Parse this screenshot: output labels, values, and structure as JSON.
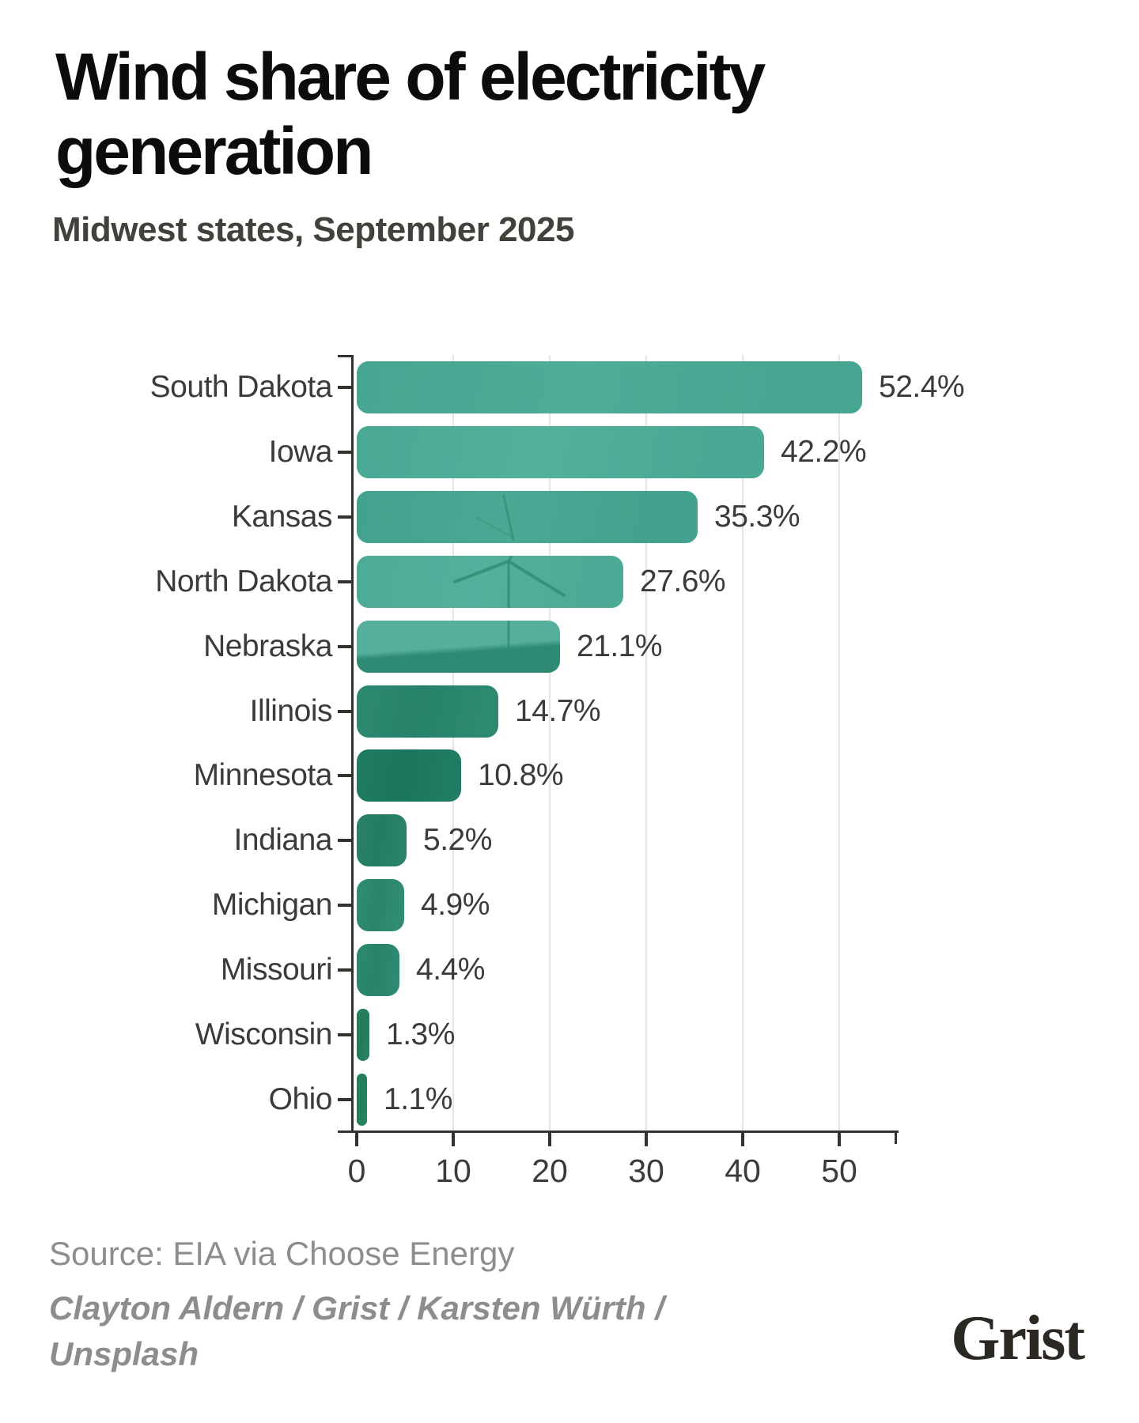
{
  "header": {
    "title": "Wind share of electricity generation",
    "subtitle": "Midwest states, September 2025"
  },
  "chart_data": {
    "type": "bar",
    "orientation": "horizontal",
    "title": "Wind share of electricity generation",
    "subtitle": "Midwest states, September 2025",
    "unit": "%",
    "categories": [
      "South Dakota",
      "Iowa",
      "Kansas",
      "North Dakota",
      "Nebraska",
      "Illinois",
      "Minnesota",
      "Indiana",
      "Michigan",
      "Missouri",
      "Wisconsin",
      "Ohio"
    ],
    "values": [
      52.4,
      42.2,
      35.3,
      27.6,
      21.1,
      14.7,
      10.8,
      5.2,
      4.9,
      4.4,
      1.3,
      1.1
    ],
    "value_labels": [
      "52.4%",
      "42.2%",
      "35.3%",
      "27.6%",
      "21.1%",
      "14.7%",
      "10.8%",
      "5.2%",
      "4.9%",
      "4.4%",
      "1.3%",
      "1.1%"
    ],
    "x_ticks": [
      "0",
      "10",
      "20",
      "30",
      "40",
      "50"
    ],
    "xlim": [
      0,
      56
    ],
    "xlabel": "",
    "ylabel": "",
    "grid": "vertical",
    "legend": "none",
    "bar_texture": "wind-turbine-photo-teal-overlay",
    "bar_colors": [
      [
        "#46a691",
        "#4eac97"
      ],
      [
        "#4aa994",
        "#52b09b"
      ],
      [
        "#42a28d",
        "#4aa995"
      ],
      [
        "#4cab96",
        "#54b09c"
      ],
      [
        "#55af9b",
        "#2e8a73"
      ],
      [
        "#2e8971",
        "#27826a"
      ],
      [
        "#217c64",
        "#1b745c"
      ],
      [
        "#2a8269",
        "#227c62"
      ],
      [
        "#318c74",
        "#2a846c"
      ],
      [
        "#2e8971",
        "#28836a"
      ],
      [
        "#27815f",
        "#237d5b"
      ],
      [
        "#27825f",
        "#237e5b"
      ]
    ],
    "axis_color": "#32322e",
    "gridline_color": "#e4e4e4",
    "label_color": "#3b3b37"
  },
  "footer": {
    "source": "Source: EIA via Choose Energy",
    "credit_lines": [
      "Clayton Aldern / Grist / Karsten Würth /",
      "Unsplash"
    ],
    "logo_text": "Grist"
  }
}
